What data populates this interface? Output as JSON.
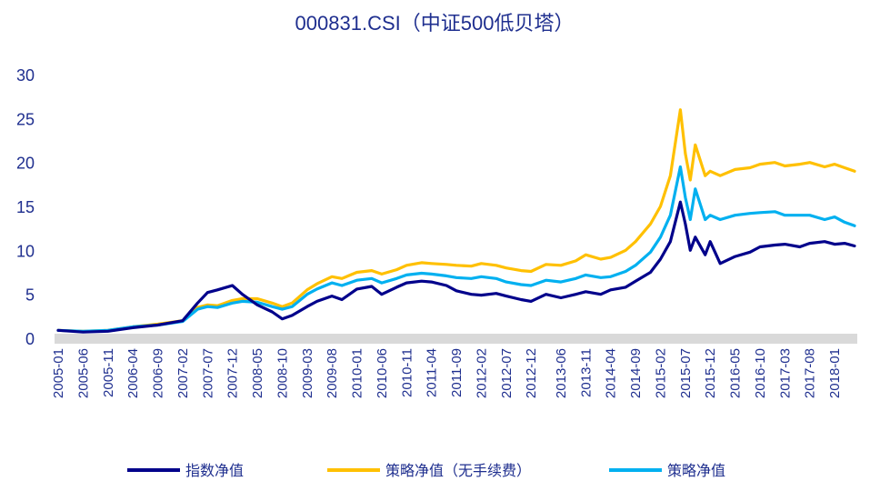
{
  "chart_data": {
    "type": "line",
    "title": "000831.CSI（中证500低贝塔）",
    "xlabel": "",
    "ylabel": "",
    "ylim": [
      0,
      30
    ],
    "yticks": [
      0,
      5,
      10,
      15,
      20,
      25,
      30
    ],
    "x_tick_labels": [
      "2005-01",
      "2005-06",
      "2005-11",
      "2006-04",
      "2006-09",
      "2007-02",
      "2007-07",
      "2007-12",
      "2008-05",
      "2008-10",
      "2009-03",
      "2009-08",
      "2010-01",
      "2010-06",
      "2010-11",
      "2011-04",
      "2011-09",
      "2012-02",
      "2012-07",
      "2012-12",
      "2013-06",
      "2013-11",
      "2014-04",
      "2014-09",
      "2015-02",
      "2015-07",
      "2015-12",
      "2016-05",
      "2016-10",
      "2017-03",
      "2017-08",
      "2018-01"
    ],
    "grid": false,
    "legend_position": "bottom",
    "series": [
      {
        "name": "指数净值",
        "color": "#00008b",
        "x": [
          "2005-01",
          "2005-06",
          "2005-11",
          "2006-04",
          "2006-09",
          "2007-02",
          "2007-05",
          "2007-07",
          "2007-09",
          "2007-12",
          "2008-02",
          "2008-05",
          "2008-08",
          "2008-10",
          "2008-12",
          "2009-03",
          "2009-05",
          "2009-08",
          "2009-10",
          "2010-01",
          "2010-04",
          "2010-06",
          "2010-09",
          "2010-11",
          "2011-02",
          "2011-04",
          "2011-07",
          "2011-09",
          "2011-12",
          "2012-02",
          "2012-05",
          "2012-07",
          "2012-10",
          "2012-12",
          "2013-03",
          "2013-06",
          "2013-09",
          "2013-11",
          "2014-02",
          "2014-04",
          "2014-07",
          "2014-09",
          "2014-12",
          "2015-02",
          "2015-04",
          "2015-06",
          "2015-07",
          "2015-08",
          "2015-09",
          "2015-11",
          "2015-12",
          "2016-02",
          "2016-05",
          "2016-08",
          "2016-10",
          "2017-01",
          "2017-03",
          "2017-06",
          "2017-08",
          "2017-11",
          "2018-01",
          "2018-03",
          "2018-05"
        ],
        "y": [
          0.9,
          0.7,
          0.8,
          1.2,
          1.5,
          2.0,
          4.0,
          5.2,
          5.5,
          6.0,
          5.0,
          3.8,
          3.0,
          2.2,
          2.6,
          3.6,
          4.2,
          4.8,
          4.4,
          5.6,
          5.9,
          5.0,
          5.8,
          6.3,
          6.5,
          6.4,
          6.0,
          5.4,
          5.0,
          4.9,
          5.1,
          4.8,
          4.4,
          4.2,
          5.0,
          4.6,
          5.0,
          5.3,
          5.0,
          5.5,
          5.8,
          6.5,
          7.5,
          9.0,
          11.0,
          15.5,
          13.0,
          10.0,
          11.5,
          9.5,
          11.0,
          8.5,
          9.3,
          9.8,
          10.4,
          10.6,
          10.7,
          10.4,
          10.8,
          11.0,
          10.7,
          10.8,
          10.5
        ]
      },
      {
        "name": "策略净值（无手续费）",
        "color": "#ffc000",
        "x": [
          "2005-01",
          "2005-06",
          "2005-11",
          "2006-04",
          "2006-09",
          "2007-02",
          "2007-05",
          "2007-07",
          "2007-09",
          "2007-12",
          "2008-02",
          "2008-05",
          "2008-08",
          "2008-10",
          "2008-12",
          "2009-03",
          "2009-05",
          "2009-08",
          "2009-10",
          "2010-01",
          "2010-04",
          "2010-06",
          "2010-09",
          "2010-11",
          "2011-02",
          "2011-04",
          "2011-07",
          "2011-09",
          "2011-12",
          "2012-02",
          "2012-05",
          "2012-07",
          "2012-10",
          "2012-12",
          "2013-03",
          "2013-06",
          "2013-09",
          "2013-11",
          "2014-02",
          "2014-04",
          "2014-07",
          "2014-09",
          "2014-12",
          "2015-02",
          "2015-04",
          "2015-06",
          "2015-07",
          "2015-08",
          "2015-09",
          "2015-11",
          "2015-12",
          "2016-02",
          "2016-05",
          "2016-08",
          "2016-10",
          "2017-01",
          "2017-03",
          "2017-06",
          "2017-08",
          "2017-11",
          "2018-01",
          "2018-03",
          "2018-05"
        ],
        "y": [
          0.9,
          0.8,
          0.9,
          1.3,
          1.6,
          2.0,
          3.5,
          3.8,
          3.7,
          4.3,
          4.5,
          4.5,
          4.0,
          3.6,
          4.0,
          5.5,
          6.2,
          7.0,
          6.8,
          7.5,
          7.7,
          7.3,
          7.8,
          8.3,
          8.6,
          8.5,
          8.4,
          8.3,
          8.2,
          8.5,
          8.3,
          8.0,
          7.7,
          7.6,
          8.4,
          8.3,
          8.8,
          9.5,
          9.0,
          9.2,
          10.0,
          11.0,
          13.0,
          15.0,
          18.5,
          26.0,
          21.0,
          18.0,
          22.0,
          18.5,
          19.0,
          18.5,
          19.2,
          19.4,
          19.8,
          20.0,
          19.6,
          19.8,
          20.0,
          19.5,
          19.8,
          19.4,
          19.0
        ]
      },
      {
        "name": "策略净值",
        "color": "#00b0f0",
        "x": [
          "2005-01",
          "2005-06",
          "2005-11",
          "2006-04",
          "2006-09",
          "2007-02",
          "2007-05",
          "2007-07",
          "2007-09",
          "2007-12",
          "2008-02",
          "2008-05",
          "2008-08",
          "2008-10",
          "2008-12",
          "2009-03",
          "2009-05",
          "2009-08",
          "2009-10",
          "2010-01",
          "2010-04",
          "2010-06",
          "2010-09",
          "2010-11",
          "2011-02",
          "2011-04",
          "2011-07",
          "2011-09",
          "2011-12",
          "2012-02",
          "2012-05",
          "2012-07",
          "2012-10",
          "2012-12",
          "2013-03",
          "2013-06",
          "2013-09",
          "2013-11",
          "2014-02",
          "2014-04",
          "2014-07",
          "2014-09",
          "2014-12",
          "2015-02",
          "2015-04",
          "2015-06",
          "2015-07",
          "2015-08",
          "2015-09",
          "2015-11",
          "2015-12",
          "2016-02",
          "2016-05",
          "2016-08",
          "2016-10",
          "2017-01",
          "2017-03",
          "2017-06",
          "2017-08",
          "2017-11",
          "2018-01",
          "2018-03",
          "2018-05"
        ],
        "y": [
          0.9,
          0.8,
          0.9,
          1.3,
          1.5,
          1.9,
          3.3,
          3.6,
          3.5,
          4.0,
          4.2,
          4.1,
          3.6,
          3.3,
          3.6,
          5.0,
          5.6,
          6.3,
          6.0,
          6.6,
          6.8,
          6.3,
          6.8,
          7.2,
          7.4,
          7.3,
          7.1,
          6.9,
          6.8,
          7.0,
          6.8,
          6.4,
          6.1,
          6.0,
          6.6,
          6.4,
          6.8,
          7.2,
          6.9,
          7.0,
          7.6,
          8.3,
          9.8,
          11.5,
          14.0,
          19.5,
          16.0,
          13.5,
          17.0,
          13.5,
          14.0,
          13.5,
          14.0,
          14.2,
          14.3,
          14.4,
          14.0,
          14.0,
          14.0,
          13.5,
          13.8,
          13.2,
          12.8
        ]
      }
    ]
  }
}
